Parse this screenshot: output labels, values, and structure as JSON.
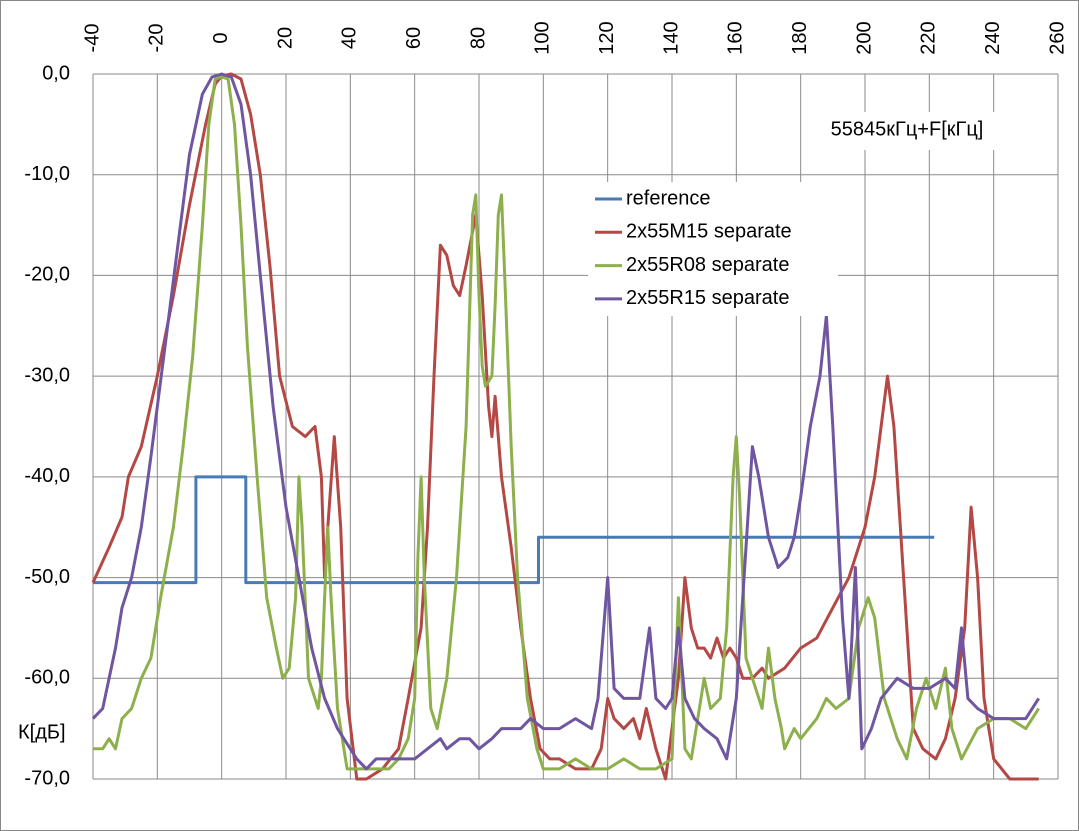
{
  "chart_data": {
    "type": "line",
    "annotation": "55845кГц+F[кГц]",
    "y_label": "К[дБ]",
    "grid": true,
    "xlim": [
      -40,
      260
    ],
    "xticks": [
      -40,
      -20,
      0,
      20,
      40,
      60,
      80,
      100,
      120,
      140,
      160,
      180,
      200,
      220,
      240,
      260
    ],
    "ylim": [
      -70,
      0
    ],
    "yticks": [
      {
        "value": 0,
        "label": "0,0"
      },
      {
        "value": -10,
        "label": "-10,0"
      },
      {
        "value": -20,
        "label": "-20,0"
      },
      {
        "value": -30,
        "label": "-30,0"
      },
      {
        "value": -40,
        "label": "-40,0"
      },
      {
        "value": -50,
        "label": "-50,0"
      },
      {
        "value": -60,
        "label": "-60,0"
      },
      {
        "value": -70,
        "label": "-70,0"
      }
    ],
    "series": [
      {
        "name": "reference",
        "color": "#4a7ab5",
        "x": [
          -40,
          -8,
          -8,
          7.5,
          7.5,
          98.5,
          98.5,
          221.5
        ],
        "values": [
          -50.5,
          -50.5,
          -40,
          -40,
          -50.5,
          -50.5,
          -46,
          -46
        ]
      },
      {
        "name": "2x55M15 separate",
        "color": "#b34845",
        "x": [
          -40,
          -35,
          -31,
          -29,
          -25,
          -20,
          -15,
          -10,
          -5,
          -2,
          0,
          3,
          6,
          9,
          12,
          15,
          18,
          22,
          26,
          29,
          31,
          32,
          33,
          35,
          37,
          39,
          42,
          45,
          50,
          55,
          58,
          62,
          64,
          66,
          68,
          70,
          72,
          74,
          76,
          79,
          81,
          83,
          84,
          85,
          87,
          90,
          93,
          96,
          99,
          102,
          105,
          110,
          115,
          118,
          120,
          122,
          125,
          128,
          130,
          132,
          135,
          138,
          140,
          142,
          144,
          146,
          148,
          150,
          152,
          154,
          156,
          158,
          160,
          162,
          165,
          168,
          170,
          175,
          180,
          185,
          190,
          195,
          200,
          203,
          205,
          207,
          209,
          212,
          215,
          218,
          222,
          225,
          228,
          231,
          233,
          235,
          237,
          240,
          245,
          250,
          254
        ],
        "values": [
          -50.5,
          -47,
          -44,
          -40,
          -37,
          -30,
          -22,
          -13,
          -5,
          -1,
          -0.2,
          0,
          -0.5,
          -4,
          -10,
          -19,
          -30,
          -35,
          -36,
          -35,
          -40,
          -50,
          -45,
          -36,
          -45,
          -62,
          -70,
          -70,
          -69,
          -67,
          -62,
          -55,
          -45,
          -30,
          -17,
          -18,
          -21,
          -22,
          -19,
          -14,
          -22,
          -33,
          -36,
          -32,
          -40,
          -47,
          -55,
          -62,
          -67,
          -68,
          -68,
          -69,
          -69,
          -67,
          -62,
          -64,
          -65,
          -64,
          -66,
          -63,
          -67,
          -70,
          -65,
          -60,
          -50,
          -55,
          -57,
          -57,
          -58,
          -56,
          -58,
          -57,
          -58,
          -60,
          -60,
          -59,
          -60,
          -59,
          -57,
          -56,
          -53,
          -50,
          -45,
          -40,
          -35,
          -30,
          -35,
          -50,
          -65,
          -67,
          -68,
          -66,
          -62,
          -55,
          -43,
          -50,
          -62,
          -68,
          -70,
          -70,
          -70
        ]
      },
      {
        "name": "2x55R08 separate",
        "color": "#8db04c",
        "x": [
          -40,
          -37,
          -35,
          -33,
          -31,
          -28,
          -25,
          -22,
          -19,
          -15,
          -12,
          -9,
          -6,
          -4,
          -2,
          0,
          2,
          4,
          6,
          8,
          11,
          14,
          17,
          19,
          21,
          23,
          24,
          25,
          27,
          30,
          31,
          32,
          33,
          34,
          36,
          39,
          42,
          48,
          52,
          55,
          58,
          60,
          61,
          62,
          63,
          65,
          67,
          70,
          73,
          76,
          78,
          79,
          80,
          81,
          82,
          84,
          85,
          86,
          87,
          88,
          90,
          92,
          95,
          98,
          100,
          105,
          110,
          115,
          120,
          125,
          130,
          135,
          140,
          142,
          144,
          146,
          150,
          152,
          155,
          157,
          159,
          160,
          161,
          163,
          165,
          168,
          170,
          172,
          174,
          175,
          178,
          180,
          185,
          188,
          191,
          195,
          198,
          201,
          203,
          206,
          210,
          213,
          216,
          219,
          222,
          225,
          227,
          230,
          235,
          240,
          245,
          250,
          254
        ],
        "values": [
          -67,
          -67,
          -66,
          -67,
          -64,
          -63,
          -60,
          -58,
          -52,
          -45,
          -37,
          -28,
          -15,
          -5,
          -0.5,
          -0.3,
          -0.5,
          -5,
          -15,
          -27,
          -40,
          -52,
          -57,
          -60,
          -59,
          -52,
          -40,
          -45,
          -60,
          -63,
          -60,
          -52,
          -45,
          -52,
          -63,
          -69,
          -69,
          -69,
          -69,
          -68,
          -66,
          -62,
          -48,
          -40,
          -50,
          -63,
          -65,
          -60,
          -50,
          -35,
          -14,
          -12,
          -22,
          -29,
          -31,
          -30,
          -23,
          -14,
          -12,
          -20,
          -37,
          -50,
          -62,
          -67,
          -69,
          -69,
          -68,
          -69,
          -69,
          -68,
          -69,
          -69,
          -68,
          -52,
          -67,
          -68,
          -60,
          -63,
          -62,
          -55,
          -40,
          -36,
          -42,
          -58,
          -60,
          -63,
          -57,
          -62,
          -65,
          -67,
          -65,
          -66,
          -64,
          -62,
          -63,
          -62,
          -55,
          -52,
          -54,
          -62,
          -66,
          -68,
          -63,
          -60,
          -63,
          -59,
          -65,
          -68,
          -65,
          -64,
          -64,
          -65,
          -63
        ]
      },
      {
        "name": "2x55R15 separate",
        "color": "#7055a0",
        "x": [
          -40,
          -37,
          -35,
          -33,
          -31,
          -28,
          -25,
          -22,
          -18,
          -14,
          -10,
          -6,
          -3,
          0,
          3,
          6,
          9,
          12,
          16,
          20,
          24,
          28,
          32,
          36,
          40,
          42,
          45,
          48,
          52,
          56,
          60,
          64,
          68,
          70,
          74,
          77,
          80,
          84,
          87,
          90,
          93,
          96,
          100,
          105,
          110,
          115,
          117,
          120,
          122,
          125,
          130,
          133,
          135,
          138,
          140,
          142,
          144,
          147,
          150,
          154,
          157,
          160,
          163,
          165,
          167,
          170,
          173,
          176,
          178,
          180,
          183,
          186,
          188,
          190,
          193,
          195,
          197,
          199,
          202,
          205,
          210,
          215,
          220,
          225,
          228,
          230,
          232,
          235,
          240,
          245,
          250,
          254
        ],
        "values": [
          -64,
          -63,
          -60,
          -57,
          -53,
          -50,
          -45,
          -38,
          -28,
          -18,
          -8,
          -2,
          -0.3,
          0,
          -0.3,
          -3,
          -10,
          -20,
          -33,
          -43,
          -50,
          -57,
          -62,
          -65,
          -67,
          -68,
          -69,
          -68,
          -68,
          -68,
          -68,
          -67,
          -66,
          -67,
          -66,
          -66,
          -67,
          -66,
          -65,
          -65,
          -65,
          -64,
          -65,
          -65,
          -64,
          -65,
          -62,
          -50,
          -61,
          -62,
          -62,
          -55,
          -62,
          -63,
          -62,
          -55,
          -62,
          -64,
          -65,
          -66,
          -68,
          -62,
          -47,
          -37,
          -40,
          -46,
          -49,
          -48,
          -46,
          -42,
          -35,
          -30,
          -24,
          -35,
          -54,
          -62,
          -49,
          -67,
          -65,
          -62,
          -60,
          -61,
          -61,
          -60,
          -61,
          -55,
          -62,
          -63,
          -64,
          -64,
          -64,
          -62
        ]
      }
    ]
  }
}
